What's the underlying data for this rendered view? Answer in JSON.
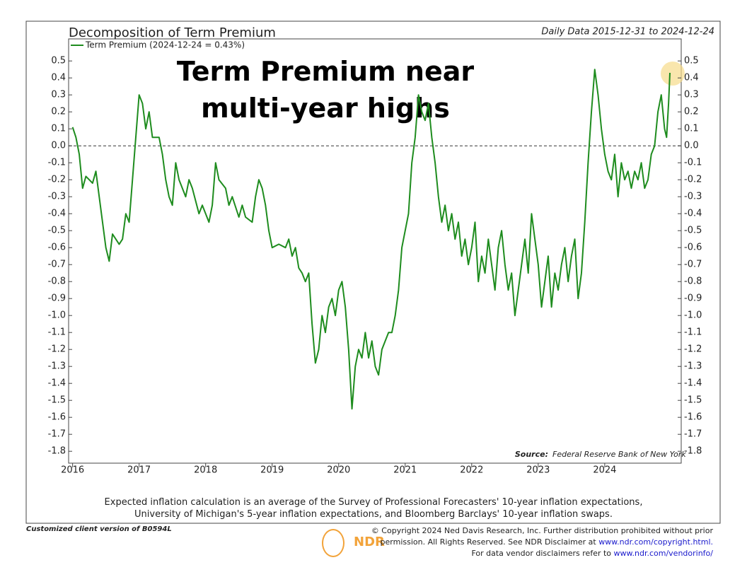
{
  "chart_data": {
    "type": "line",
    "title": "Decomposition of Term Premium",
    "subtitle": "Daily Data 2015-12-31 to 2024-12-24",
    "annotation": "Term Premium near multi-year highs",
    "source_label": "Source:",
    "source": "Federal Reserve Bank of New York",
    "x": [
      2016.0,
      2016.05,
      2016.1,
      2016.15,
      2016.2,
      2016.3,
      2016.35,
      2016.4,
      2016.45,
      2016.5,
      2016.55,
      2016.6,
      2016.7,
      2016.75,
      2016.8,
      2016.85,
      2016.9,
      2016.95,
      2017.0,
      2017.05,
      2017.1,
      2017.15,
      2017.2,
      2017.3,
      2017.35,
      2017.4,
      2017.45,
      2017.5,
      2017.55,
      2017.6,
      2017.7,
      2017.75,
      2017.8,
      2017.9,
      2017.95,
      2018.05,
      2018.1,
      2018.15,
      2018.2,
      2018.3,
      2018.35,
      2018.4,
      2018.5,
      2018.55,
      2018.6,
      2018.7,
      2018.75,
      2018.8,
      2018.85,
      2018.9,
      2018.95,
      2019.0,
      2019.1,
      2019.2,
      2019.25,
      2019.3,
      2019.35,
      2019.4,
      2019.45,
      2019.5,
      2019.55,
      2019.6,
      2019.65,
      2019.7,
      2019.75,
      2019.8,
      2019.85,
      2019.9,
      2019.95,
      2020.0,
      2020.05,
      2020.1,
      2020.15,
      2020.2,
      2020.25,
      2020.3,
      2020.35,
      2020.4,
      2020.45,
      2020.5,
      2020.55,
      2020.6,
      2020.65,
      2020.7,
      2020.75,
      2020.8,
      2020.85,
      2020.9,
      2020.95,
      2021.0,
      2021.05,
      2021.1,
      2021.15,
      2021.2,
      2021.25,
      2021.3,
      2021.35,
      2021.4,
      2021.45,
      2021.5,
      2021.55,
      2021.6,
      2021.65,
      2021.7,
      2021.75,
      2021.8,
      2021.85,
      2021.9,
      2021.95,
      2022.0,
      2022.05,
      2022.1,
      2022.15,
      2022.2,
      2022.25,
      2022.3,
      2022.35,
      2022.4,
      2022.45,
      2022.5,
      2022.55,
      2022.6,
      2022.65,
      2022.7,
      2022.75,
      2022.8,
      2022.85,
      2022.9,
      2022.95,
      2023.0,
      2023.05,
      2023.1,
      2023.15,
      2023.2,
      2023.25,
      2023.3,
      2023.35,
      2023.4,
      2023.45,
      2023.5,
      2023.55,
      2023.6,
      2023.65,
      2023.7,
      2023.75,
      2023.8,
      2023.85,
      2023.9,
      2023.95,
      2024.0,
      2024.05,
      2024.1,
      2024.15,
      2024.2,
      2024.25,
      2024.3,
      2024.35,
      2024.4,
      2024.45,
      2024.5,
      2024.55,
      2024.6,
      2024.65,
      2024.7,
      2024.75,
      2024.8,
      2024.85,
      2024.9,
      2024.93,
      2024.96,
      2024.98
    ],
    "series": [
      {
        "name": "Term Premium (2024-12-24 = 0.43%)",
        "color": "#1e8c1e",
        "values": [
          0.11,
          0.05,
          -0.05,
          -0.25,
          -0.18,
          -0.22,
          -0.15,
          -0.3,
          -0.45,
          -0.6,
          -0.68,
          -0.52,
          -0.58,
          -0.55,
          -0.4,
          -0.45,
          -0.2,
          0.05,
          0.3,
          0.25,
          0.1,
          0.2,
          0.05,
          0.05,
          -0.05,
          -0.2,
          -0.3,
          -0.35,
          -0.1,
          -0.2,
          -0.3,
          -0.2,
          -0.25,
          -0.4,
          -0.35,
          -0.45,
          -0.35,
          -0.1,
          -0.2,
          -0.25,
          -0.35,
          -0.3,
          -0.42,
          -0.35,
          -0.42,
          -0.45,
          -0.3,
          -0.2,
          -0.25,
          -0.35,
          -0.5,
          -0.6,
          -0.58,
          -0.6,
          -0.55,
          -0.65,
          -0.6,
          -0.72,
          -0.75,
          -0.8,
          -0.75,
          -1.05,
          -1.28,
          -1.2,
          -1.0,
          -1.1,
          -0.95,
          -0.9,
          -1.0,
          -0.85,
          -0.8,
          -0.95,
          -1.2,
          -1.55,
          -1.3,
          -1.2,
          -1.25,
          -1.1,
          -1.25,
          -1.15,
          -1.3,
          -1.35,
          -1.2,
          -1.15,
          -1.1,
          -1.1,
          -1.0,
          -0.85,
          -0.6,
          -0.5,
          -0.4,
          -0.1,
          0.05,
          0.3,
          0.2,
          0.15,
          0.25,
          0.05,
          -0.1,
          -0.3,
          -0.45,
          -0.35,
          -0.5,
          -0.4,
          -0.55,
          -0.45,
          -0.65,
          -0.55,
          -0.7,
          -0.6,
          -0.45,
          -0.8,
          -0.65,
          -0.75,
          -0.55,
          -0.7,
          -0.85,
          -0.6,
          -0.5,
          -0.7,
          -0.85,
          -0.75,
          -1.0,
          -0.85,
          -0.7,
          -0.55,
          -0.75,
          -0.4,
          -0.55,
          -0.7,
          -0.95,
          -0.8,
          -0.65,
          -0.95,
          -0.75,
          -0.85,
          -0.7,
          -0.6,
          -0.8,
          -0.65,
          -0.55,
          -0.9,
          -0.75,
          -0.45,
          -0.1,
          0.2,
          0.45,
          0.3,
          0.1,
          -0.05,
          -0.15,
          -0.2,
          -0.05,
          -0.3,
          -0.1,
          -0.2,
          -0.15,
          -0.25,
          -0.15,
          -0.2,
          -0.1,
          -0.25,
          -0.2,
          -0.05,
          0.0,
          0.2,
          0.3,
          0.1,
          0.05,
          0.25,
          0.43
        ]
      }
    ],
    "xlim": [
      2015.94,
      2025.15
    ],
    "xticks": [
      2016,
      2017,
      2018,
      2019,
      2020,
      2021,
      2022,
      2023,
      2024
    ],
    "ylim": [
      -1.87,
      0.63
    ],
    "yticks": [
      0.5,
      0.4,
      0.3,
      0.2,
      0.1,
      {
        "value": 0,
        "label": "0.0"
      },
      -0.1,
      -0.2,
      -0.3,
      -0.4,
      -0.5,
      -0.6,
      -0.7,
      -0.8,
      -0.9,
      {
        "value": -1,
        "label": "-1.0"
      },
      -1.1,
      -1.2,
      -1.3,
      -1.4,
      -1.5,
      -1.6,
      -1.7,
      -1.8
    ],
    "reference_line": 0,
    "note": [
      "Expected inflation calculation is an average of the Survey of Professional Forecasters' 10-year inflation expectations,",
      "University of Michigan's 5-year inflation expectations, and Bloomberg Barclays' 10-year inflation swaps."
    ]
  },
  "footer": {
    "client": "Customized client version of B0594L",
    "logo": "NDR",
    "copyright": "© Copyright 2024 Ned Davis Research, Inc. Further distribution prohibited without prior",
    "rights": "permission. All Rights Reserved. See NDR Disclaimer at ",
    "rights_link": "www.ndr.com/copyright.html.",
    "vendor": "For data vendor disclaimers refer to ",
    "vendor_link": "www.ndr.com/vendorinfo/"
  }
}
